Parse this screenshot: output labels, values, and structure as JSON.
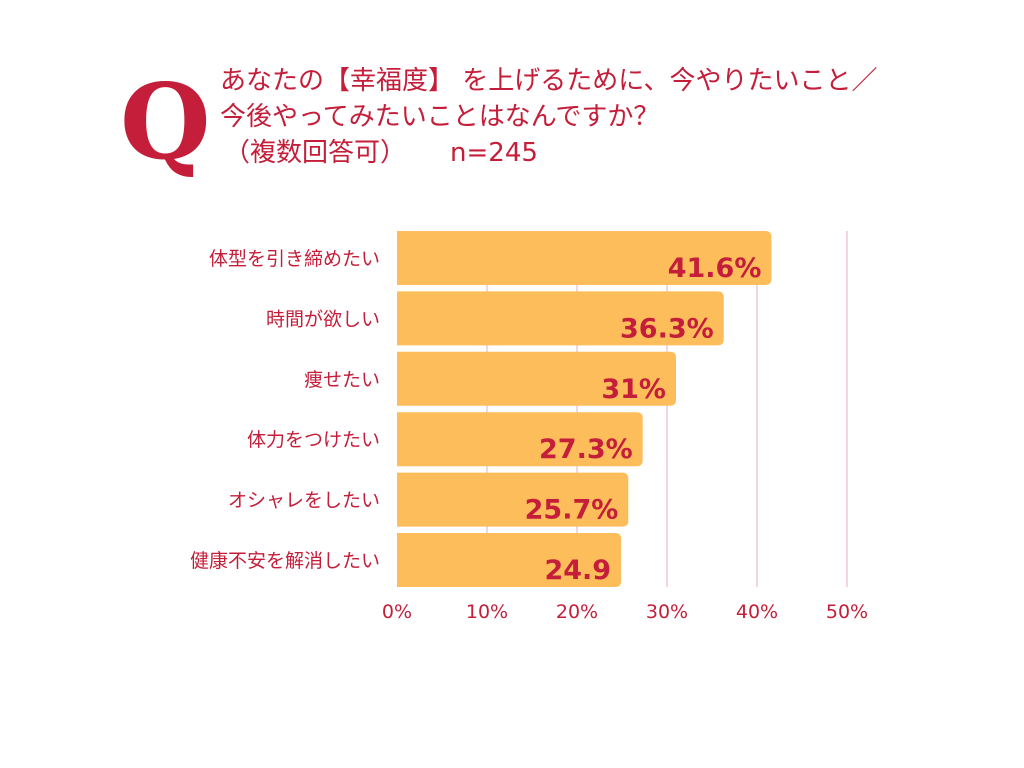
{
  "question": {
    "q_label": "Q",
    "line1": "あなたの【幸福度】 を上げるために、今やりたいこと／",
    "line2": "今後やってみたいことはなんですか？",
    "line3": "（複数回答可）",
    "sample": "n=245"
  },
  "colors": {
    "accent": "#c41e3a",
    "bar": "#fcbd5a",
    "grid": "#f0c8d0"
  },
  "chart_data": {
    "type": "bar",
    "orientation": "horizontal",
    "categories": [
      "体型を引き締めたい",
      "時間が欲しい",
      "痩せたい",
      "体力をつけたい",
      "オシャレをしたい",
      "健康不安を解消したい"
    ],
    "values": [
      41.6,
      36.3,
      31,
      27.3,
      25.7,
      24.9
    ],
    "data_labels": [
      "41.6%",
      "36.3%",
      "31%",
      "27.3%",
      "25.7%",
      "24.9"
    ],
    "xlim": [
      0,
      50
    ],
    "x_ticks": [
      0,
      10,
      20,
      30,
      40,
      50
    ],
    "x_tick_labels": [
      "0%",
      "10%",
      "20%",
      "30%",
      "40%",
      "50%"
    ],
    "grid": true
  }
}
